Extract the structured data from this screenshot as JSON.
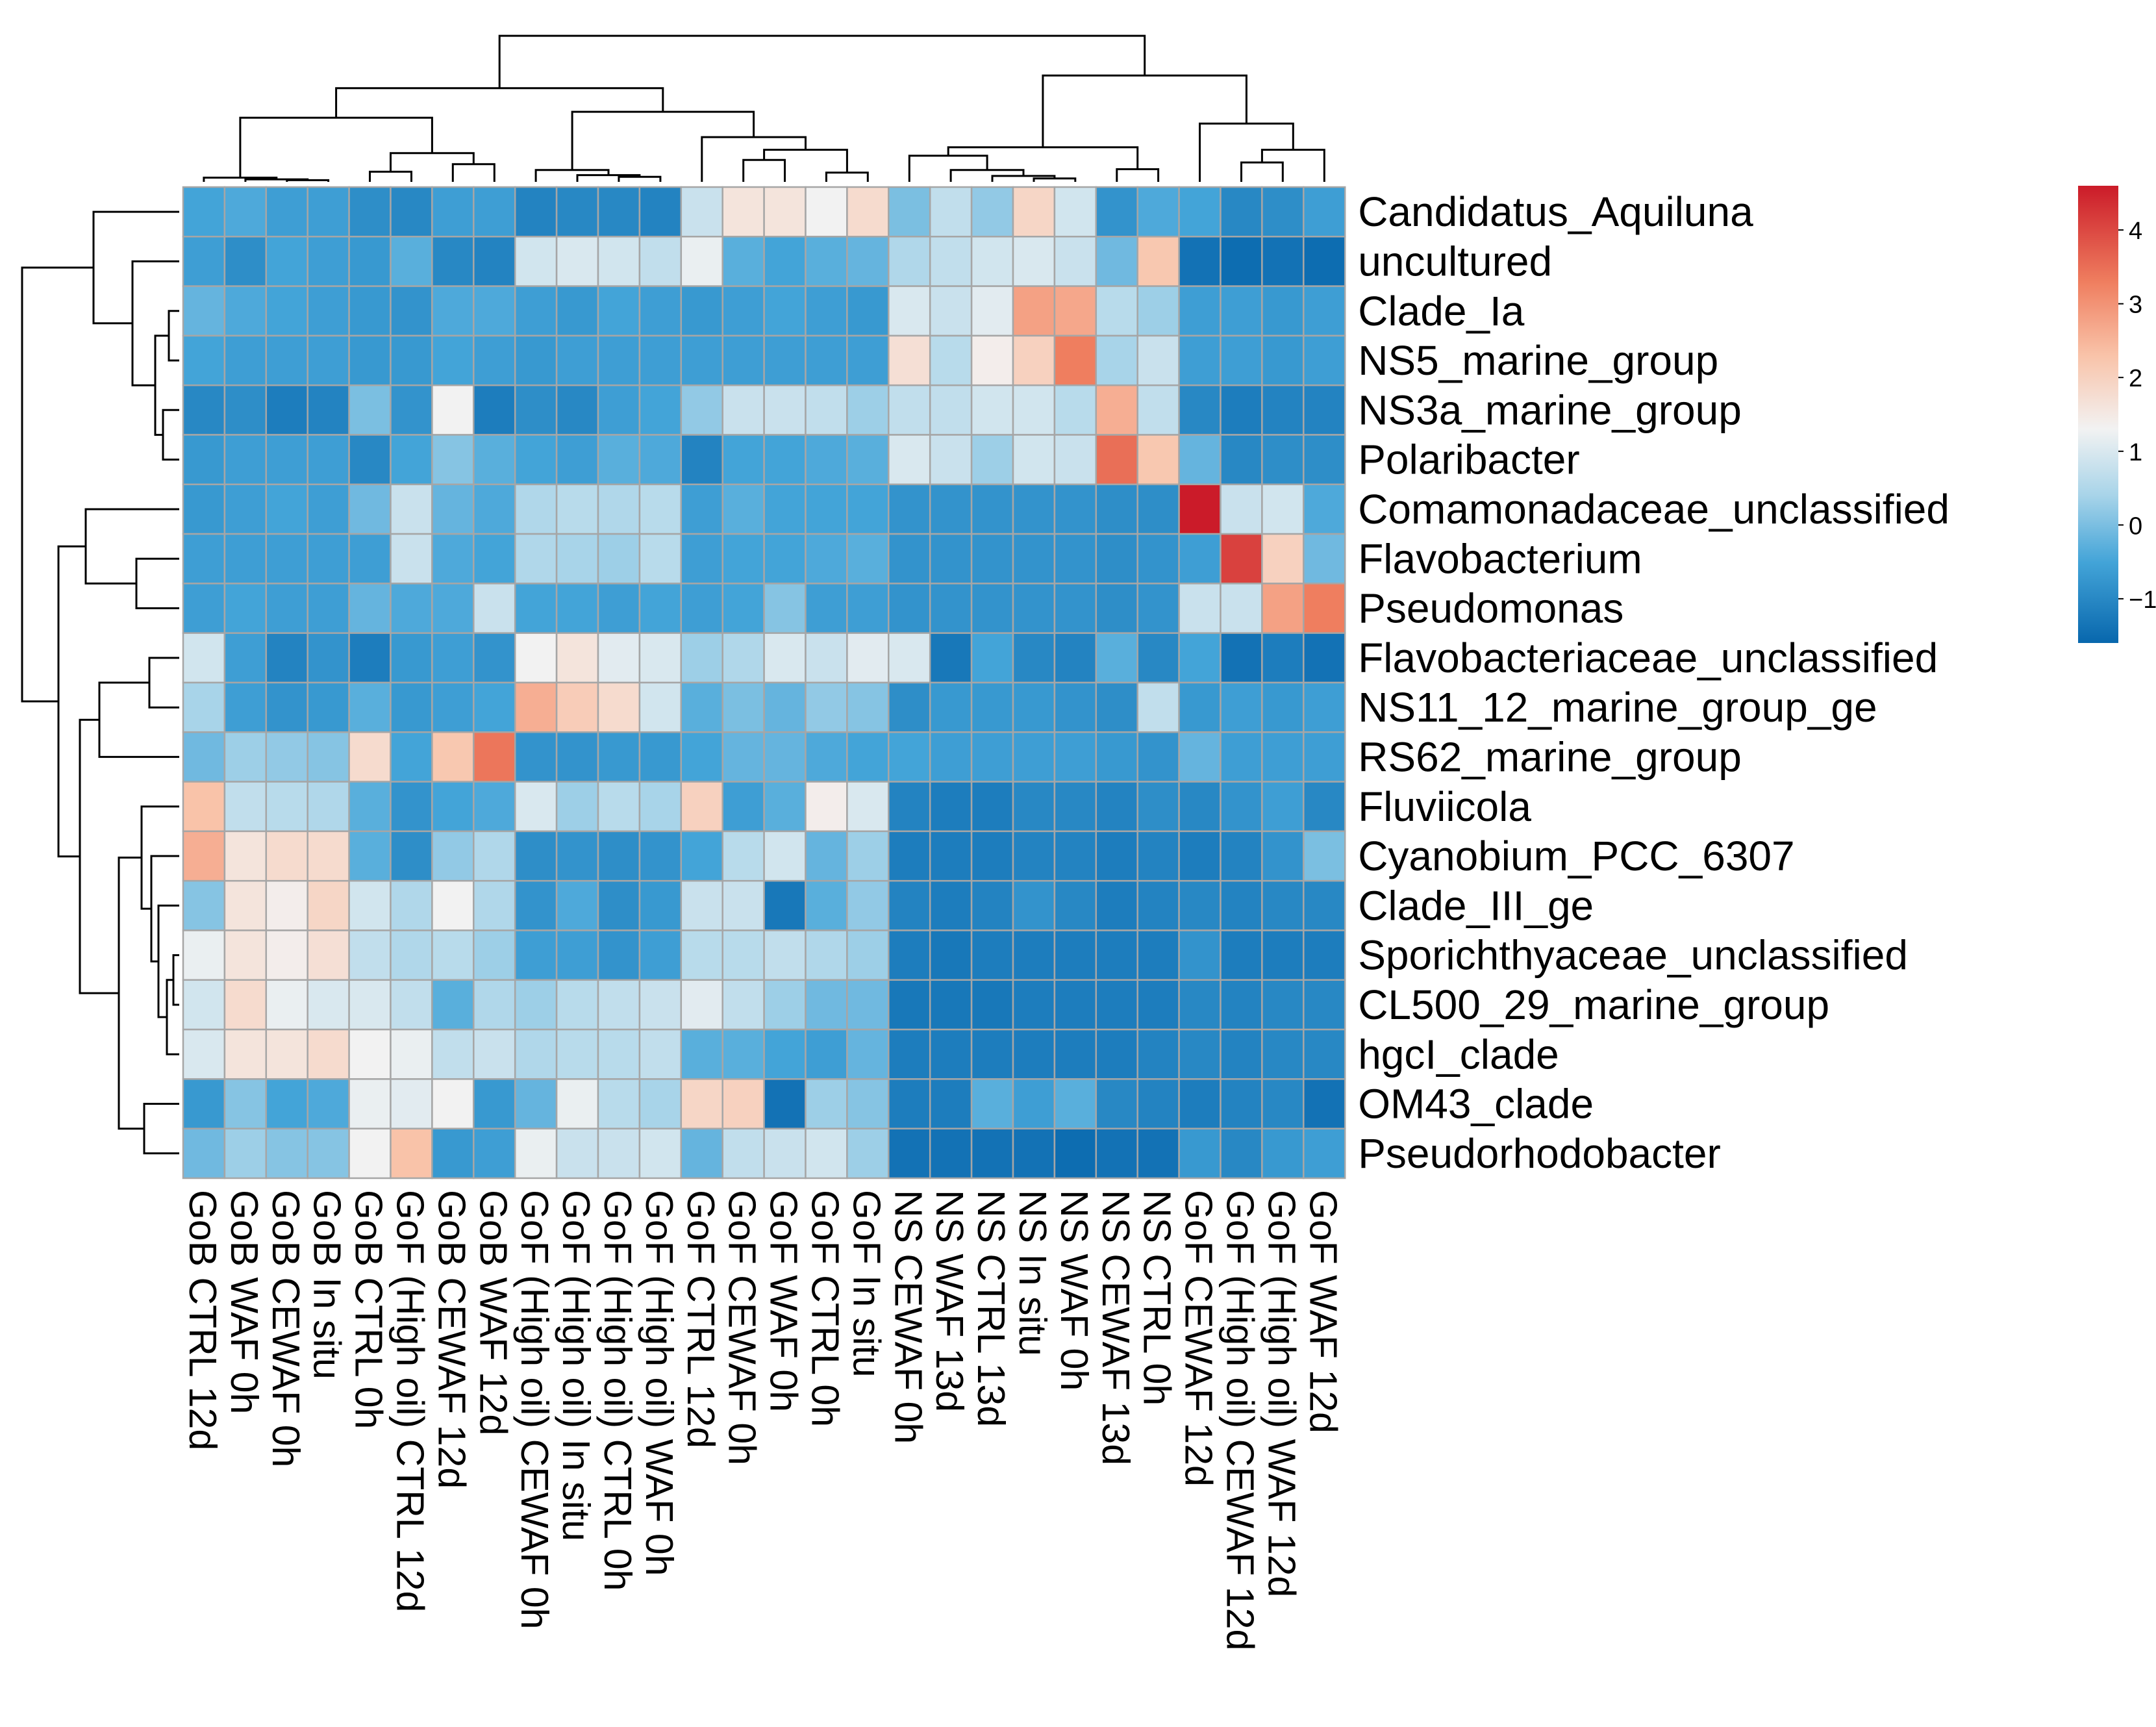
{
  "chart_data": {
    "type": "heatmap",
    "title": "",
    "rows": [
      "Candidatus_Aquiluna",
      "uncultured",
      "Clade_Ia",
      "NS5_marine_group",
      "NS3a_marine_group",
      "Polaribacter",
      "Comamonadaceae_unclassified",
      "Flavobacterium",
      "Pseudomonas",
      "Flavobacteriaceae_unclassified",
      "NS11_12_marine_group_ge",
      "RS62_marine_group",
      "Fluviicola",
      "Cyanobium_PCC_6307",
      "Clade_III_ge",
      "Sporichthyaceae_unclassified",
      "CL500_29_marine_group",
      "hgcI_clade",
      "OM43_clade",
      "Pseudorhodobacter"
    ],
    "columns": [
      "GoB CTRL 12d",
      "GoB WAF 0h",
      "GoB CEWAF 0h",
      "GoB In situ",
      "GoB CTRL 0h",
      "GoF (High oil) CTRL 12d",
      "GoB CEWAF 12d",
      "GoB WAF 12d",
      "GoF (High oil) CEWAF 0h",
      "GoF (High oil) In situ",
      "GoF (High oil) CTRL 0h",
      "GoF (High oil) WAF 0h",
      "GoF CTRL 12d",
      "GoF CEWAF 0h",
      "GoF WAF 0h",
      "GoF CTRL 0h",
      "GoF In situ",
      "NS CEWAF 0h",
      "NS WAF 13d",
      "NS CTRL 13d",
      "NS In situ",
      "NS WAF 0h",
      "NS CEWAF 13d",
      "NS CTRL 0h",
      "GoF CEWAF 12d",
      "GoF (High oil) CEWAF 12d",
      "GoF (High oil) WAF 12d",
      "GoF WAF 12d"
    ],
    "values": [
      [
        -0.5,
        -0.4,
        -0.6,
        -0.6,
        -0.9,
        -1.0,
        -0.6,
        -0.6,
        -1.1,
        -1.0,
        -1.0,
        -1.1,
        0.8,
        1.6,
        1.6,
        1.3,
        1.8,
        0.0,
        0.7,
        0.2,
        1.9,
        0.9,
        -0.8,
        -0.4,
        -0.5,
        -1.0,
        -0.9,
        -0.6
      ],
      [
        -0.6,
        -0.9,
        -0.5,
        -0.6,
        -0.7,
        -0.3,
        -1.0,
        -1.1,
        0.9,
        1.0,
        0.9,
        0.7,
        1.2,
        -0.3,
        -0.5,
        -0.3,
        -0.2,
        0.5,
        0.7,
        0.9,
        1.0,
        0.8,
        -0.1,
        2.2,
        -1.4,
        -1.5,
        -1.4,
        -1.5
      ],
      [
        -0.2,
        -0.4,
        -0.5,
        -0.6,
        -0.7,
        -0.8,
        -0.4,
        -0.4,
        -0.6,
        -0.7,
        -0.5,
        -0.6,
        -0.7,
        -0.6,
        -0.5,
        -0.6,
        -0.7,
        1.0,
        0.8,
        1.1,
        2.8,
        2.7,
        0.6,
        0.3,
        -0.6,
        -0.6,
        -0.7,
        -0.6
      ],
      [
        -0.5,
        -0.6,
        -0.6,
        -0.6,
        -0.7,
        -0.7,
        -0.5,
        -0.6,
        -0.7,
        -0.6,
        -0.6,
        -0.6,
        -0.6,
        -0.6,
        -0.6,
        -0.6,
        -0.6,
        1.7,
        0.6,
        1.4,
        2.0,
        3.3,
        0.4,
        0.8,
        -0.6,
        -0.6,
        -0.7,
        -0.6
      ],
      [
        -1.0,
        -0.9,
        -1.2,
        -1.1,
        0.0,
        -0.8,
        1.3,
        -1.2,
        -0.9,
        -1.0,
        -0.6,
        -0.5,
        0.2,
        0.8,
        0.8,
        0.7,
        0.3,
        0.7,
        0.7,
        0.9,
        0.9,
        0.6,
        2.6,
        0.7,
        -1.0,
        -1.2,
        -1.1,
        -1.1
      ],
      [
        -0.7,
        -0.6,
        -0.6,
        -0.6,
        -1.0,
        -0.5,
        0.1,
        -0.3,
        -0.5,
        -0.6,
        -0.3,
        -0.4,
        -1.1,
        -0.5,
        -0.5,
        -0.4,
        -0.3,
        1.0,
        0.8,
        0.3,
        0.9,
        0.8,
        3.5,
        2.2,
        -0.2,
        -1.0,
        -0.9,
        -0.9
      ],
      [
        -0.7,
        -0.6,
        -0.5,
        -0.6,
        -0.1,
        0.8,
        -0.2,
        -0.4,
        0.5,
        0.6,
        0.5,
        0.6,
        -0.6,
        -0.3,
        -0.5,
        -0.5,
        -0.5,
        -0.8,
        -0.8,
        -0.8,
        -0.8,
        -0.8,
        -0.9,
        -0.9,
        4.6,
        0.8,
        0.9,
        -0.4
      ],
      [
        -0.6,
        -0.6,
        -0.6,
        -0.6,
        -0.6,
        0.8,
        -0.4,
        -0.5,
        0.5,
        0.4,
        0.3,
        0.6,
        -0.6,
        -0.5,
        -0.5,
        -0.4,
        -0.3,
        -0.8,
        -0.8,
        -0.8,
        -0.8,
        -0.8,
        -0.9,
        -0.8,
        -0.6,
        4.1,
        2.0,
        -0.1
      ],
      [
        -0.6,
        -0.5,
        -0.6,
        -0.6,
        -0.2,
        -0.4,
        -0.4,
        0.8,
        -0.5,
        -0.5,
        -0.6,
        -0.5,
        -0.6,
        -0.5,
        0.1,
        -0.6,
        -0.6,
        -0.8,
        -0.8,
        -0.8,
        -0.8,
        -0.8,
        -0.9,
        -0.8,
        0.8,
        0.8,
        2.8,
        3.3
      ],
      [
        0.9,
        -0.6,
        -1.1,
        -0.8,
        -1.2,
        -0.7,
        -0.6,
        -0.8,
        1.3,
        1.6,
        1.1,
        1.0,
        0.3,
        0.5,
        1.0,
        0.8,
        1.1,
        1.0,
        -1.3,
        -0.5,
        -1.0,
        -1.1,
        -0.3,
        -1.0,
        -0.5,
        -1.4,
        -1.2,
        -1.4
      ],
      [
        0.4,
        -0.6,
        -0.8,
        -0.7,
        -0.3,
        -0.7,
        -0.6,
        -0.5,
        2.6,
        2.1,
        1.8,
        0.9,
        -0.3,
        0.0,
        -0.2,
        0.2,
        0.1,
        -0.9,
        -0.7,
        -0.7,
        -0.7,
        -0.8,
        -0.9,
        0.7,
        -0.7,
        -0.6,
        -0.7,
        -0.6
      ],
      [
        -0.1,
        0.3,
        0.2,
        0.1,
        1.8,
        -0.5,
        2.2,
        3.4,
        -0.8,
        -0.8,
        -0.7,
        -0.7,
        -0.5,
        -0.2,
        -0.2,
        -0.4,
        -0.5,
        -0.5,
        -0.6,
        -0.6,
        -0.6,
        -0.6,
        -0.7,
        -0.8,
        -0.2,
        -0.6,
        -0.6,
        -0.6
      ],
      [
        2.3,
        0.7,
        0.6,
        0.5,
        -0.3,
        -0.8,
        -0.5,
        -0.4,
        1.0,
        0.3,
        0.6,
        0.4,
        2.0,
        -0.6,
        -0.3,
        1.4,
        1.0,
        -1.1,
        -1.2,
        -1.2,
        -1.0,
        -1.0,
        -1.1,
        -0.9,
        -1.0,
        -0.8,
        -0.6,
        -1.0
      ],
      [
        2.6,
        1.6,
        1.8,
        1.8,
        -0.3,
        -0.9,
        0.2,
        0.5,
        -0.9,
        -0.8,
        -0.9,
        -0.8,
        -0.5,
        0.6,
        0.9,
        -0.2,
        0.3,
        -1.2,
        -1.2,
        -1.2,
        -1.1,
        -1.1,
        -1.2,
        -1.1,
        -1.2,
        -1.1,
        -0.8,
        0.0
      ],
      [
        0.1,
        1.6,
        1.4,
        1.9,
        0.9,
        0.5,
        1.3,
        0.5,
        -0.8,
        -0.4,
        -0.9,
        -0.7,
        0.8,
        0.8,
        -1.3,
        -0.3,
        0.2,
        -1.1,
        -1.2,
        -1.1,
        -0.8,
        -1.0,
        -1.2,
        -1.1,
        -1.0,
        -1.1,
        -1.0,
        -1.0
      ],
      [
        1.2,
        1.6,
        1.4,
        1.7,
        0.7,
        0.5,
        0.6,
        0.3,
        -0.6,
        -0.6,
        -0.8,
        -0.6,
        0.6,
        0.6,
        0.7,
        0.5,
        0.3,
        -1.2,
        -1.3,
        -1.2,
        -1.2,
        -1.2,
        -1.2,
        -1.2,
        -0.8,
        -1.2,
        -1.2,
        -1.2
      ],
      [
        0.9,
        1.8,
        1.2,
        1.0,
        1.0,
        0.7,
        -0.3,
        0.5,
        0.3,
        0.6,
        0.7,
        0.8,
        1.1,
        0.7,
        0.3,
        -0.1,
        -0.1,
        -1.3,
        -1.3,
        -1.3,
        -1.2,
        -1.2,
        -1.2,
        -1.2,
        -1.0,
        -1.1,
        -1.0,
        -1.0
      ],
      [
        1.0,
        1.6,
        1.6,
        1.8,
        1.3,
        1.2,
        0.7,
        0.8,
        0.5,
        0.6,
        0.6,
        0.7,
        -0.3,
        -0.3,
        -0.5,
        -0.6,
        -0.2,
        -1.2,
        -1.2,
        -1.2,
        -1.2,
        -1.2,
        -1.2,
        -1.1,
        -1.0,
        -1.1,
        -1.0,
        -1.0
      ],
      [
        -0.7,
        0.1,
        -0.5,
        -0.4,
        1.2,
        1.1,
        1.3,
        -0.7,
        -0.2,
        1.2,
        0.6,
        0.4,
        1.9,
        2.0,
        -1.4,
        0.3,
        0.1,
        -1.2,
        -1.2,
        -0.3,
        -0.6,
        -0.3,
        -1.0,
        -1.1,
        -1.2,
        -1.1,
        -1.0,
        -1.4
      ],
      [
        -0.1,
        0.3,
        0.1,
        0.1,
        1.3,
        2.3,
        -0.7,
        -0.6,
        1.2,
        0.8,
        0.8,
        0.9,
        -0.2,
        0.7,
        0.8,
        0.9,
        0.3,
        -1.4,
        -1.4,
        -1.4,
        -1.4,
        -1.5,
        -1.4,
        -1.4,
        -0.7,
        -1.0,
        -0.7,
        -0.6
      ]
    ],
    "color_scale": {
      "min": -1.6,
      "max": 4.6,
      "stops": [
        {
          "v": -1.6,
          "c": "#0867ad"
        },
        {
          "v": -0.5,
          "c": "#43a4d8"
        },
        {
          "v": 0.4,
          "c": "#a8d4e9"
        },
        {
          "v": 1.3,
          "c": "#f2f2f2"
        },
        {
          "v": 2.3,
          "c": "#f9c3a9"
        },
        {
          "v": 3.3,
          "c": "#ef7e5f"
        },
        {
          "v": 4.6,
          "c": "#cb1b29"
        }
      ]
    },
    "legend_ticks": [
      4,
      3,
      2,
      1,
      0,
      -1
    ],
    "grid_color": "#a6a6a6"
  }
}
